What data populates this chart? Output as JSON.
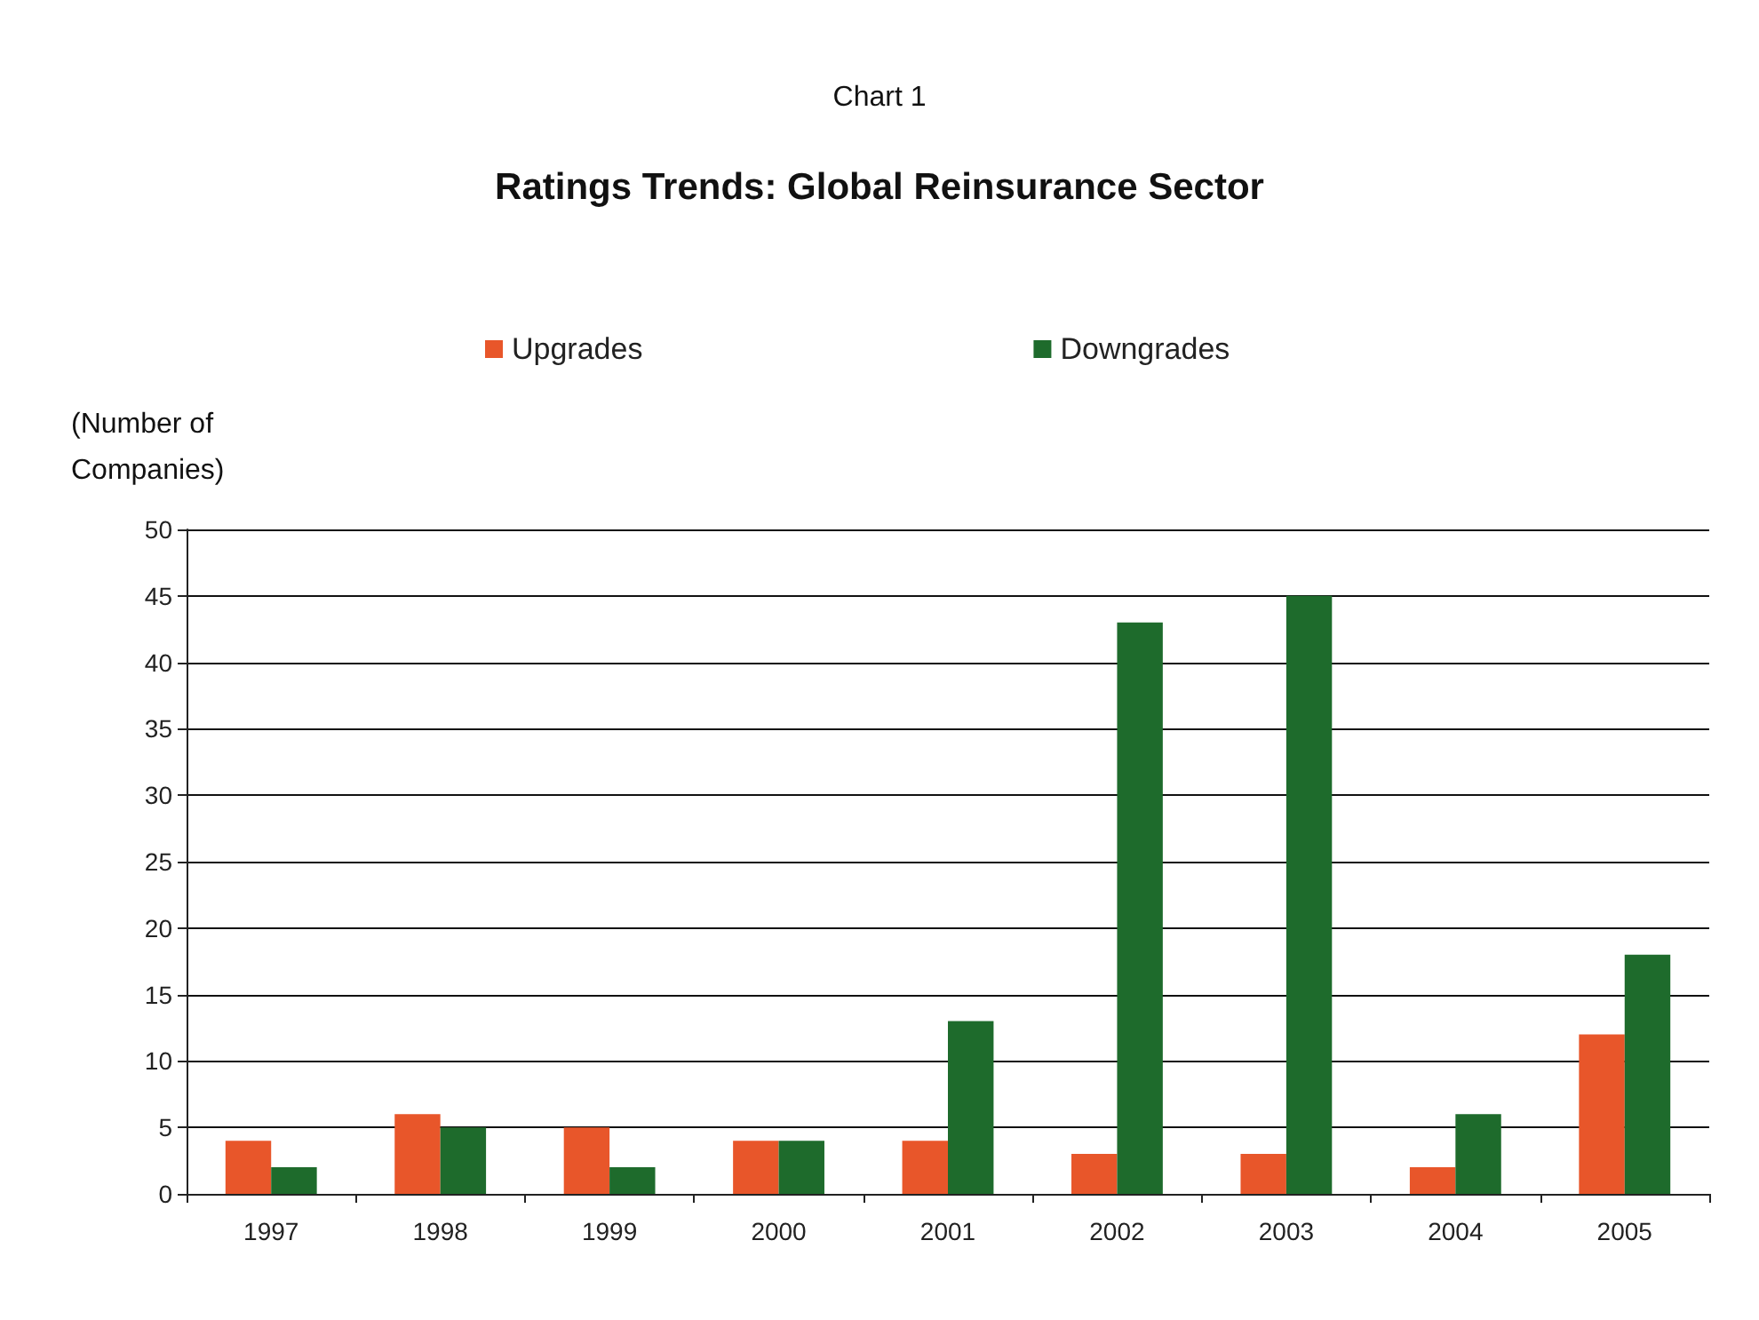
{
  "chart_data": {
    "type": "bar",
    "title": "Ratings Trends: Global Reinsurance Sector",
    "annotations": [
      "Chart 1"
    ],
    "ylabel": "(Number of\nCompanies)",
    "categories": [
      "1997",
      "1998",
      "1999",
      "2000",
      "2001",
      "2002",
      "2003",
      "2004",
      "2005"
    ],
    "series": [
      {
        "name": "Upgrades",
        "color": "#e8562a",
        "values": [
          4,
          6,
          5,
          4,
          4,
          3,
          3,
          2,
          12
        ]
      },
      {
        "name": "Downgrades",
        "color": "#1e6b2c",
        "values": [
          2,
          5,
          2,
          4,
          13,
          43,
          45,
          6,
          18
        ]
      }
    ],
    "ylim": [
      0,
      50
    ],
    "yticks": [
      0,
      5,
      10,
      15,
      20,
      25,
      30,
      35,
      40,
      45,
      50
    ],
    "grid": "y",
    "legend": "top"
  }
}
